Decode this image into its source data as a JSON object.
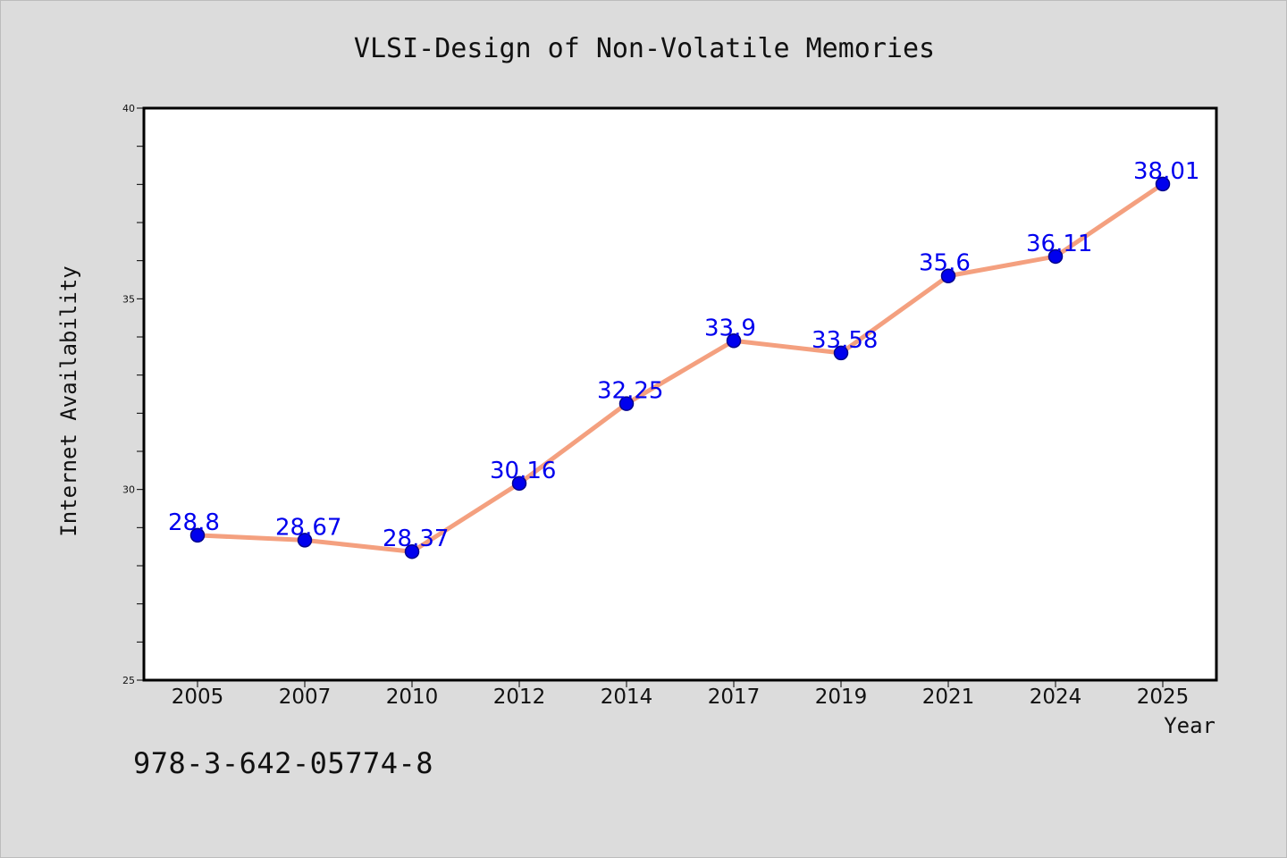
{
  "colors": {
    "background": "#dcdcdc",
    "plot_background": "#ffffff",
    "line": "#f4a07f",
    "marker": "#0000ee",
    "marker_edge": "#00008b",
    "data_label": "#0000ee",
    "axes": "#000000"
  },
  "footer": {
    "code": "978-3-642-05774-8"
  },
  "chart_data": {
    "type": "line",
    "title": "VLSI-Design of Non-Volatile Memories",
    "xlabel": "Year",
    "ylabel": "Internet Availability",
    "categories": [
      "2005",
      "2007",
      "2010",
      "2012",
      "2014",
      "2017",
      "2019",
      "2021",
      "2024",
      "2025"
    ],
    "series": [
      {
        "values": [
          28.8,
          28.67,
          28.37,
          30.16,
          32.25,
          33.9,
          33.58,
          35.6,
          36.11,
          38.01
        ],
        "labels": [
          "28.8",
          "28.67",
          "28.37",
          "30.16",
          "32.25",
          "33.9",
          "33.58",
          "35.6",
          "36.11",
          "38.01"
        ]
      }
    ],
    "ylim": [
      25,
      40
    ],
    "yticks": [
      25,
      30,
      35,
      40
    ],
    "ytick_labels": [
      "25",
      "30",
      "35",
      "40"
    ],
    "y_minor_step": 1,
    "grid": false,
    "legend": "none"
  }
}
